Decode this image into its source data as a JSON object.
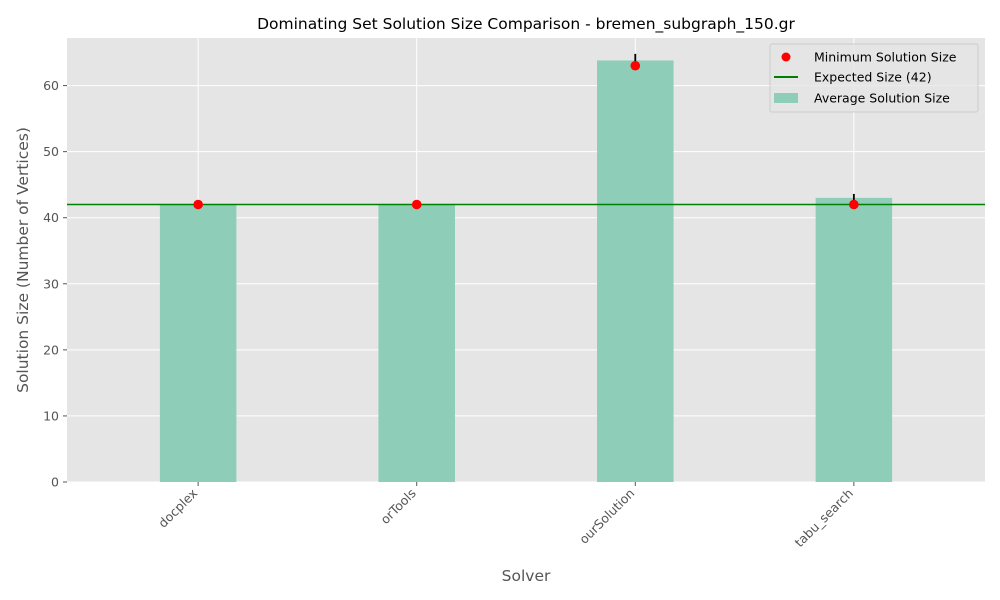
{
  "chart_data": {
    "type": "bar",
    "title": "Dominating Set Solution Size Comparison - bremen_subgraph_150.gr",
    "xlabel": "Solver",
    "ylabel": "Solution Size (Number of Vertices)",
    "categories": [
      "docplex",
      "orTools",
      "ourSolution",
      "tabu_search"
    ],
    "series": [
      {
        "name": "Average Solution Size",
        "kind": "bar",
        "values": [
          42,
          42,
          63.8,
          43
        ],
        "error": [
          0,
          0,
          1.0,
          0.6
        ],
        "color": "#8ecdb8"
      },
      {
        "name": "Minimum Solution Size",
        "kind": "scatter",
        "values": [
          42,
          42,
          63,
          42
        ],
        "color": "#ff0000"
      }
    ],
    "reference_line": {
      "name": "Expected Size (42)",
      "value": 42,
      "color": "#008000"
    },
    "ylim": [
      0,
      67.2
    ],
    "yticks": [
      0,
      10,
      20,
      30,
      40,
      50,
      60
    ],
    "grid": true,
    "background": "#e5e5e5",
    "legend_position": "top-right"
  }
}
